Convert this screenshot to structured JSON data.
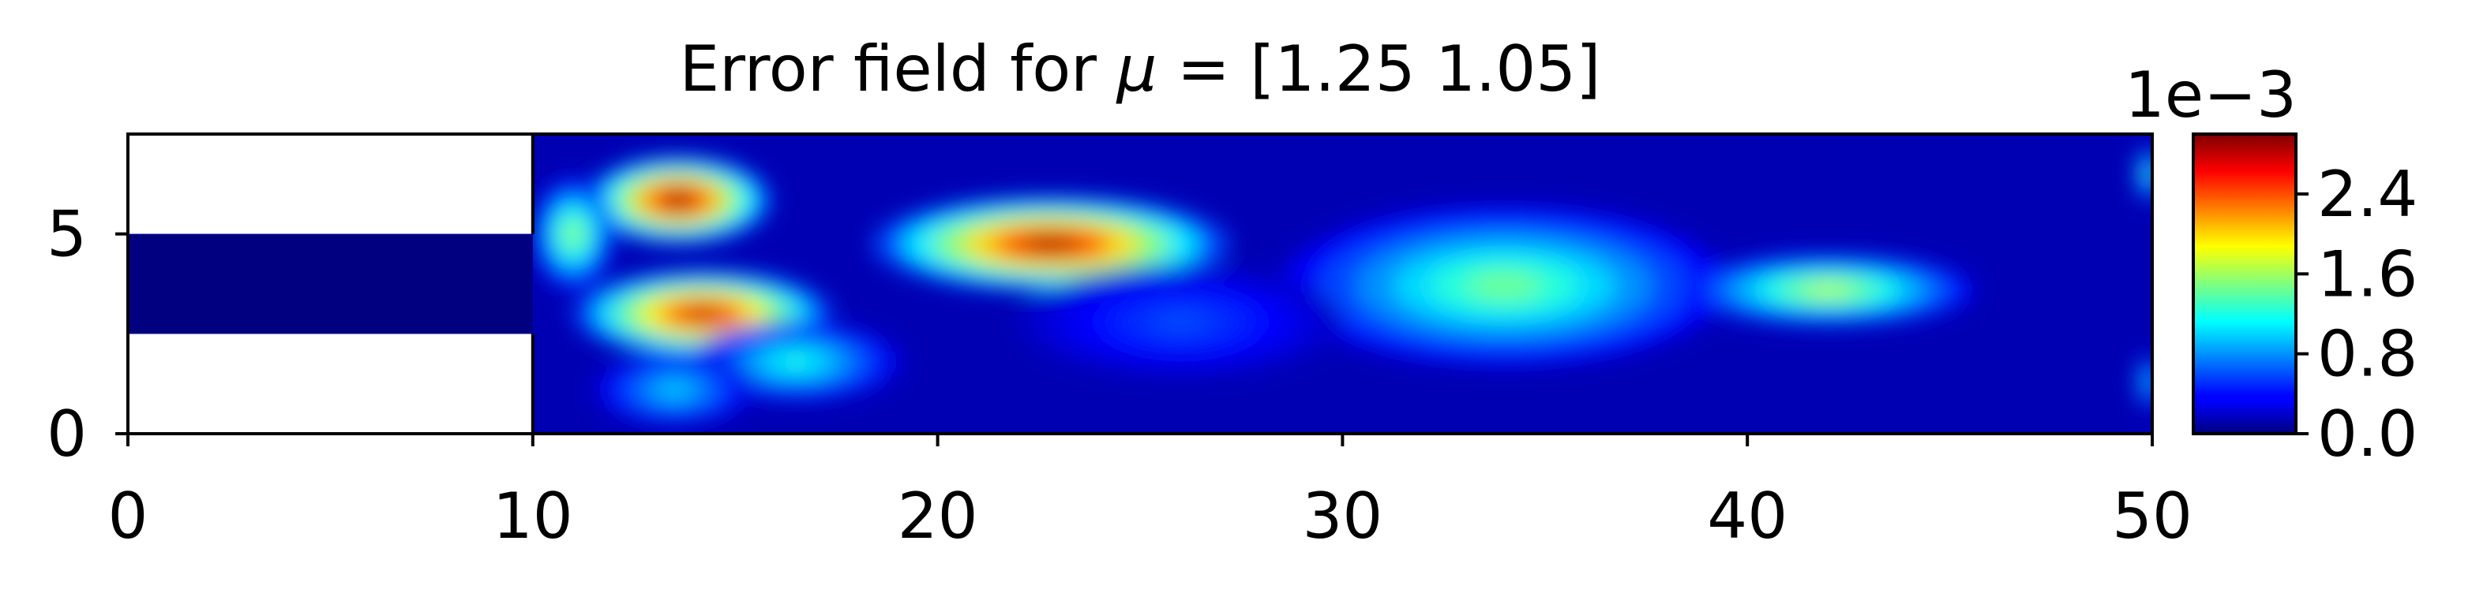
{
  "chart_data": {
    "type": "heatmap",
    "title_prefix": "Error field for ",
    "title_symbol": "μ",
    "title_suffix": " = [1.25 1.05]",
    "xlim": [
      0,
      50
    ],
    "ylim": [
      0,
      7.5
    ],
    "x_ticks": [
      0,
      10,
      20,
      30,
      40,
      50
    ],
    "y_ticks": [
      0,
      5
    ],
    "grid": false,
    "colormap": "jet",
    "colorbar": {
      "offset_label": "1e−3",
      "range": [
        0,
        3.0
      ],
      "ticks": [
        "0.0",
        "0.8",
        "1.6",
        "2.4"
      ],
      "tick_values": [
        0,
        0.8,
        1.6,
        2.4
      ]
    },
    "masked_regions": [
      {
        "x": [
          0,
          10
        ],
        "y": [
          5,
          7.5
        ]
      },
      {
        "x": [
          0,
          10
        ],
        "y": [
          0,
          2.5
        ]
      }
    ],
    "inlet_channel": {
      "x": [
        0,
        10
      ],
      "y": [
        2.5,
        5
      ],
      "value": 0.0
    },
    "background_value": 0.15,
    "hotspots": [
      {
        "cx": 13.6,
        "cy": 5.85,
        "rx": 2.3,
        "ry": 1.1,
        "peak": 3.0
      },
      {
        "cx": 14.2,
        "cy": 3.0,
        "rx": 3.2,
        "ry": 1.1,
        "peak": 2.8
      },
      {
        "cx": 16.5,
        "cy": 1.8,
        "rx": 2.6,
        "ry": 1.0,
        "peak": 1.2
      },
      {
        "cx": 13.5,
        "cy": 1.1,
        "rx": 2.0,
        "ry": 0.9,
        "peak": 1.0
      },
      {
        "cx": 22.8,
        "cy": 4.75,
        "rx": 4.4,
        "ry": 1.2,
        "peak": 2.9
      },
      {
        "cx": 34.0,
        "cy": 3.7,
        "rx": 5.5,
        "ry": 2.0,
        "peak": 1.45
      },
      {
        "cx": 42.0,
        "cy": 3.6,
        "rx": 3.6,
        "ry": 0.9,
        "peak": 1.7
      },
      {
        "cx": 26.0,
        "cy": 2.8,
        "rx": 4.0,
        "ry": 1.4,
        "peak": 0.6
      },
      {
        "cx": 11.0,
        "cy": 5.0,
        "rx": 1.0,
        "ry": 1.4,
        "peak": 1.6
      },
      {
        "cx": 49.9,
        "cy": 6.5,
        "rx": 0.3,
        "ry": 0.7,
        "peak": 1.4
      },
      {
        "cx": 49.9,
        "cy": 1.3,
        "rx": 0.3,
        "ry": 0.7,
        "peak": 1.1
      }
    ]
  }
}
